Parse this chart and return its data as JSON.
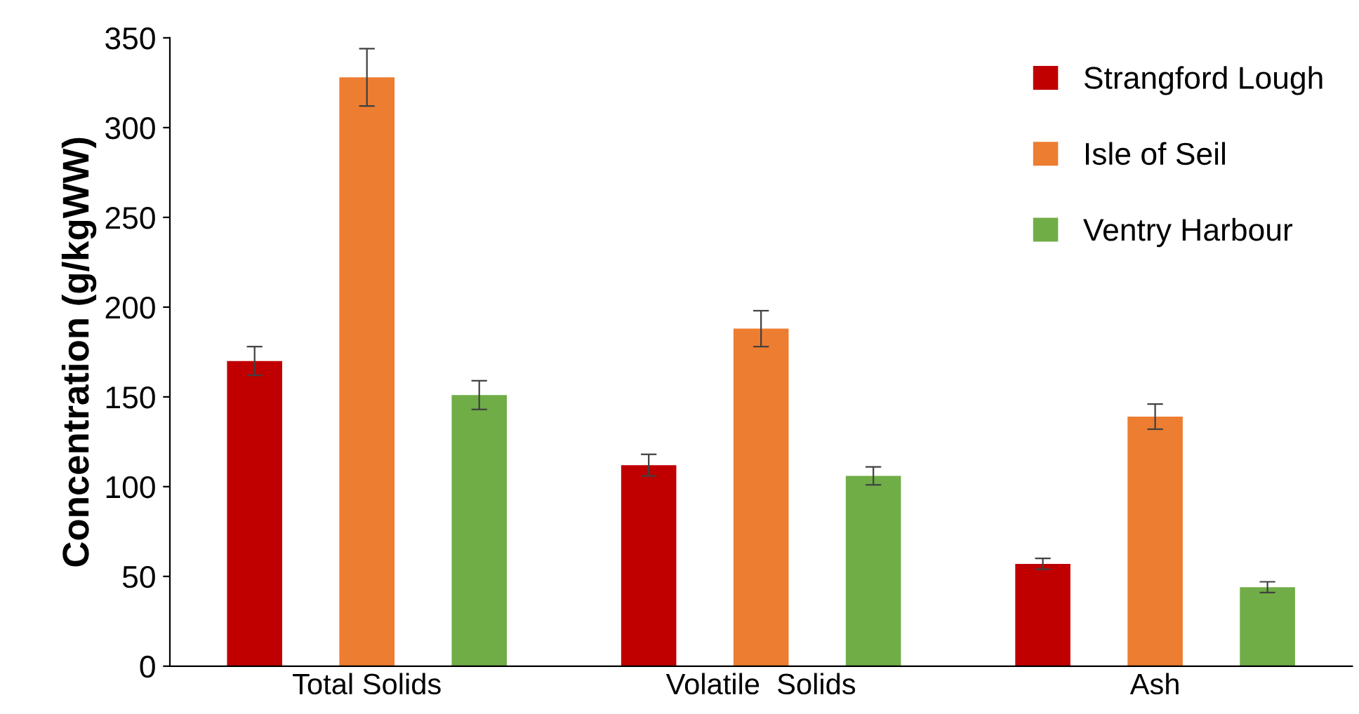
{
  "chart_data": {
    "type": "bar",
    "ylabel": "Concentration (g/kgWW)",
    "categories": [
      "Total Solids",
      "Volatile  Solids",
      "Ash"
    ],
    "series": [
      {
        "name": "Strangford Lough",
        "color": "#c00000",
        "values": [
          170,
          112,
          57
        ],
        "errors": [
          8,
          6,
          3
        ]
      },
      {
        "name": "Isle of Seil",
        "color": "#ed7d31",
        "values": [
          328,
          188,
          139
        ],
        "errors": [
          16,
          10,
          7
        ]
      },
      {
        "name": "Ventry Harbour",
        "color": "#70ad47",
        "values": [
          151,
          106,
          44
        ],
        "errors": [
          8,
          5,
          3
        ]
      }
    ],
    "ylim": [
      0,
      350
    ],
    "yticks": [
      0,
      50,
      100,
      150,
      200,
      250,
      300,
      350
    ],
    "grid": false,
    "legend": "top right"
  }
}
